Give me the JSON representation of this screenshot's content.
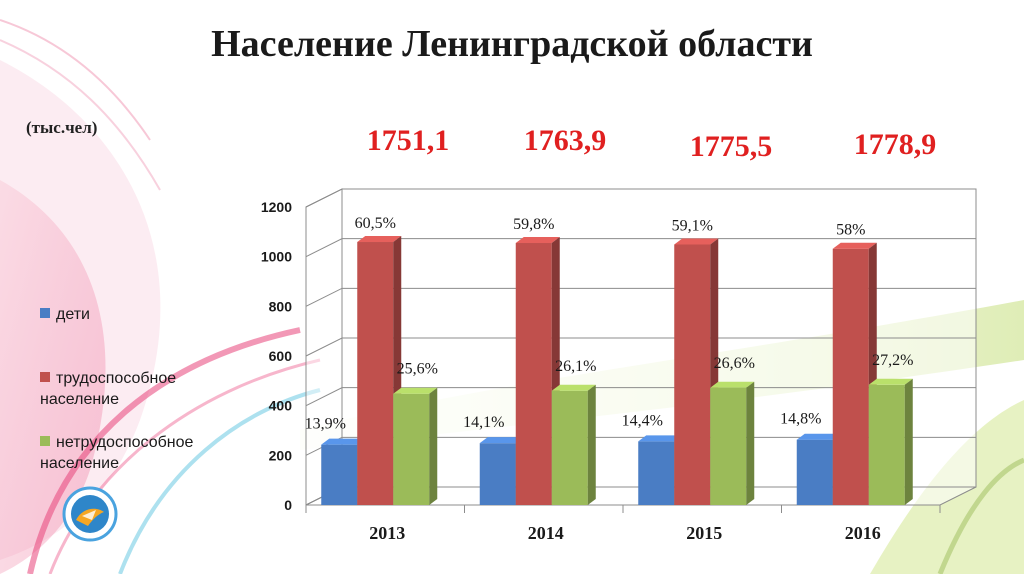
{
  "title": "Население Ленинградской области",
  "unit": "(тыс.чел)",
  "colors": {
    "deti": "#4a7dc4",
    "trud": "#c0504d",
    "netrud": "#9bbb59",
    "total_text": "#e02020"
  },
  "chart_data": {
    "type": "bar",
    "categories": [
      "2013",
      "2014",
      "2015",
      "2016"
    ],
    "totals": [
      "1751,1",
      "1763,9",
      "1775,5",
      "1778,9"
    ],
    "ylim": [
      0,
      1200
    ],
    "yticks": [
      "0",
      "200",
      "400",
      "600",
      "800",
      "1000",
      "1200"
    ],
    "grid": true,
    "legend_position": "left",
    "series": [
      {
        "name": "дети",
        "values": [
          243,
          249,
          256,
          263
        ],
        "labels": [
          "13,9%",
          "14,1%",
          "14,4%",
          "14,8%"
        ]
      },
      {
        "name": "трудоспособное население",
        "values": [
          1059,
          1055,
          1049,
          1032
        ],
        "labels": [
          "60,5%",
          "59,8%",
          "59,1%",
          "58%"
        ]
      },
      {
        "name": "нетрудоспособное население",
        "values": [
          448,
          460,
          472,
          484
        ],
        "labels": [
          "25,6%",
          "26,1%",
          "26,6%",
          "27,2%"
        ]
      }
    ]
  }
}
